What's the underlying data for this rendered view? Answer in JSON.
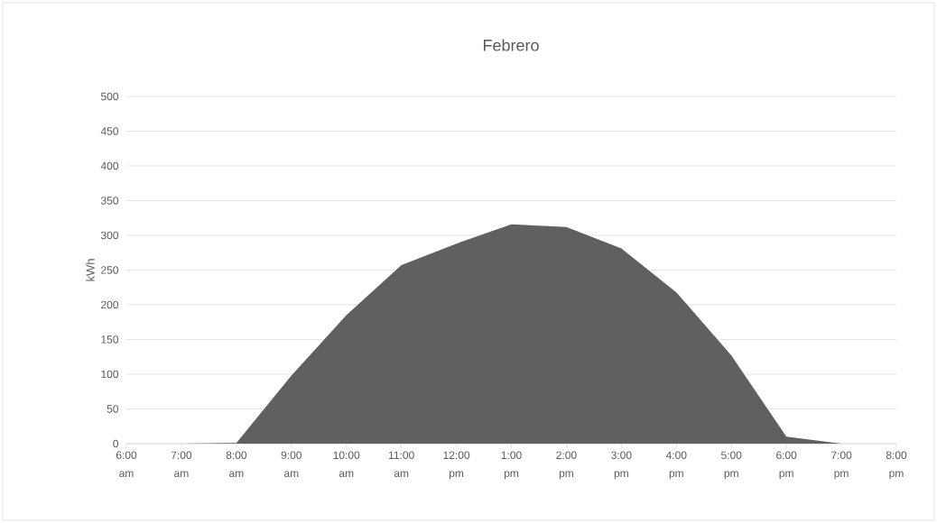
{
  "chart_data": {
    "type": "area",
    "title": "Febrero",
    "ylabel": "kWh",
    "categories": [
      "6:00 am",
      "7:00 am",
      "8:00 am",
      "9:00 am",
      "10:00 am",
      "11:00 am",
      "12:00 pm",
      "1:00 pm",
      "2:00 pm",
      "3:00 pm",
      "4:00 pm",
      "5:00 pm",
      "6:00 pm",
      "7:00 pm",
      "8:00 pm"
    ],
    "values": [
      0,
      0,
      1,
      98,
      185,
      257,
      288,
      316,
      312,
      281,
      218,
      127,
      10,
      0,
      0
    ],
    "color": "#606060",
    "ylim": [
      0,
      500
    ],
    "yticks": [
      0,
      50,
      100,
      150,
      200,
      250,
      300,
      350,
      400,
      450,
      500
    ],
    "grid": "y"
  }
}
